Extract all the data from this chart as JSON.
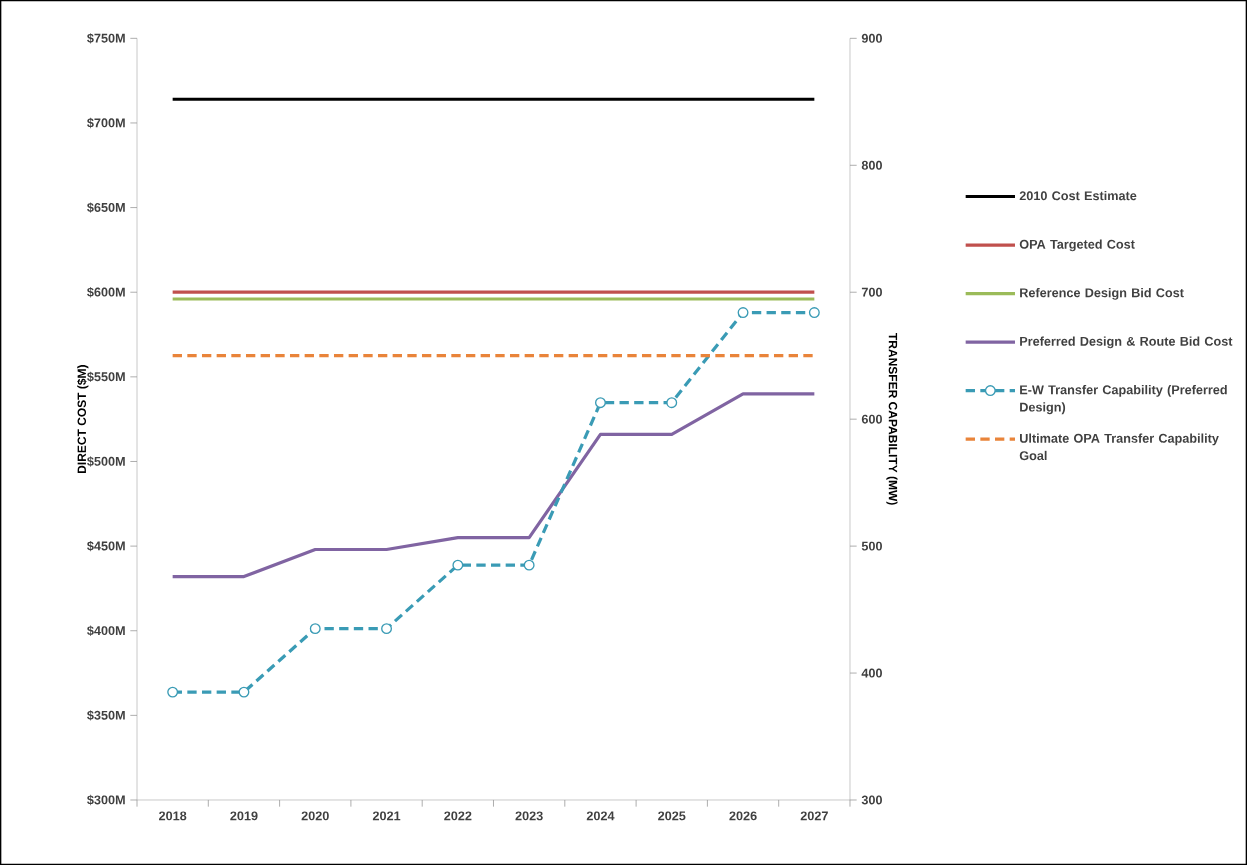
{
  "chart_data": {
    "type": "line",
    "categories": [
      "2018",
      "2019",
      "2020",
      "2021",
      "2022",
      "2023",
      "2024",
      "2025",
      "2026",
      "2027"
    ],
    "ylabel": "DIRECT COST ($M)",
    "y2label": "TRANSFER CAPABILITY (MW)",
    "ylim": [
      300,
      750
    ],
    "yticks": [
      {
        "value": 300,
        "label": "$300M"
      },
      {
        "value": 350,
        "label": "$350M"
      },
      {
        "value": 400,
        "label": "$400M"
      },
      {
        "value": 450,
        "label": "$450M"
      },
      {
        "value": 500,
        "label": "$500M"
      },
      {
        "value": 550,
        "label": "$550M"
      },
      {
        "value": 600,
        "label": "$600M"
      },
      {
        "value": 650,
        "label": "$650M"
      },
      {
        "value": 700,
        "label": "$700M"
      },
      {
        "value": 750,
        "label": "$750M"
      }
    ],
    "y2lim": [
      300,
      900
    ],
    "y2ticks": [
      300,
      400,
      500,
      600,
      700,
      800,
      900
    ],
    "legend": "right",
    "series": [
      {
        "name": "2010 Cost Estimate",
        "color": "#000000",
        "values": [
          714,
          714,
          714,
          714,
          714,
          714,
          714,
          714,
          714,
          714
        ],
        "line_style": "solid",
        "marker": "none"
      },
      {
        "name": "OPA Targeted Cost",
        "color": "#c0504d",
        "values": [
          600,
          600,
          600,
          600,
          600,
          600,
          600,
          600,
          600,
          600
        ],
        "line_style": "solid",
        "marker": "none"
      },
      {
        "name": "Reference Design Bid Cost",
        "color": "#9bbb59",
        "values": [
          596,
          596,
          596,
          596,
          596,
          596,
          596,
          596,
          596,
          596
        ],
        "line_style": "solid",
        "marker": "none"
      },
      {
        "name": "Preferred Design & Route Bid Cost",
        "color": "#8064a2",
        "values": [
          432,
          432,
          448,
          448,
          455,
          455,
          516,
          516,
          540,
          540
        ],
        "line_style": "solid",
        "marker": "none"
      },
      {
        "name": "E-W Transfer Capability (Preferred Design)",
        "color": "#3a9bb5",
        "values": [
          385,
          385,
          435,
          435,
          485,
          485,
          613,
          613,
          684,
          684
        ],
        "axis": "y2",
        "line_style": "dashed",
        "marker": "circle"
      },
      {
        "name": "Ultimate OPA Transfer Capability Goal",
        "color": "#e9843a",
        "values": [
          650,
          650,
          650,
          650,
          650,
          650,
          650,
          650,
          650,
          650
        ],
        "axis": "y2",
        "line_style": "dashed",
        "marker": "none"
      }
    ]
  }
}
